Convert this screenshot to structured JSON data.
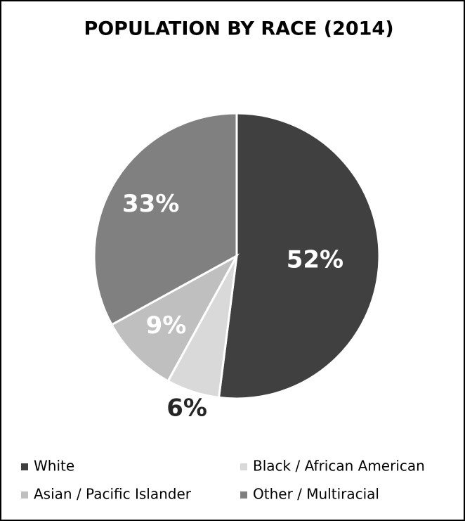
{
  "chart_data": {
    "type": "pie",
    "title": "POPULATION BY RACE (2014)",
    "categories": [
      "White",
      "Black / African American",
      "Asian / Pacific Islander",
      "Other / Multiracial"
    ],
    "values": [
      52,
      6,
      9,
      33
    ],
    "value_labels": [
      "52%",
      "6%",
      "9%",
      "33%"
    ],
    "colors": [
      "#404040",
      "#d9d9d9",
      "#bfbfbf",
      "#808080"
    ],
    "legend": "bottom"
  }
}
